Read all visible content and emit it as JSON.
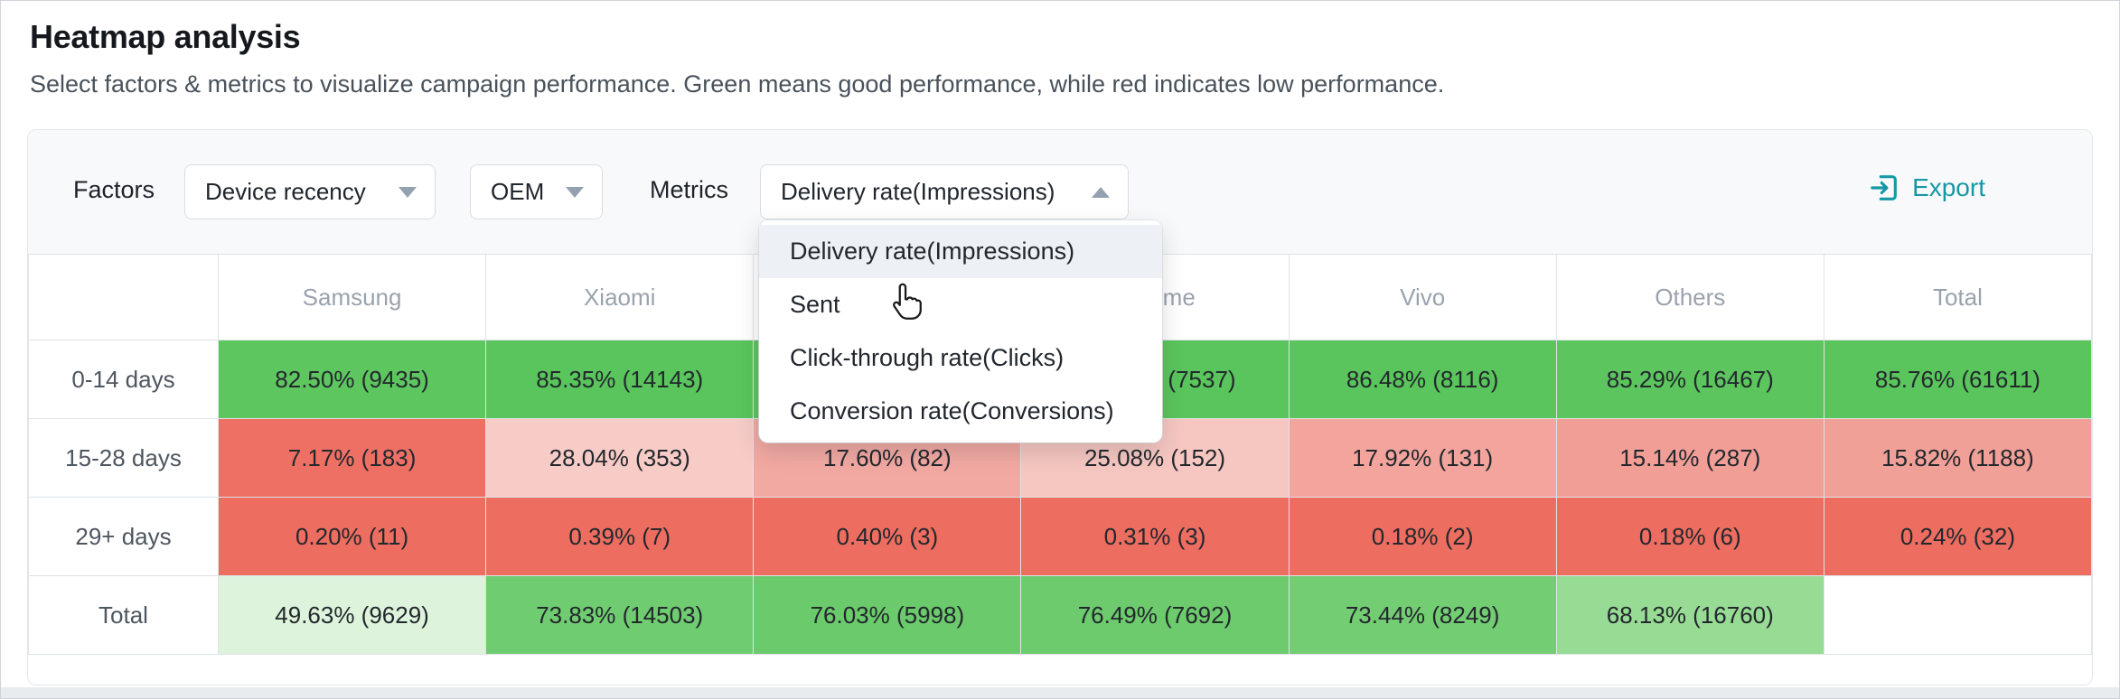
{
  "page": {
    "title": "Heatmap analysis",
    "subtitle": "Select factors & metrics to visualize campaign performance. Green means good performance, while red indicates low performance."
  },
  "toolbar": {
    "factors_label": "Factors",
    "factor_selects": [
      {
        "value": "Device recency",
        "state": "closed"
      },
      {
        "value": "OEM",
        "state": "closed"
      }
    ],
    "metrics_label": "Metrics",
    "metric_select": {
      "value": "Delivery rate(Impressions)",
      "state": "open"
    },
    "export_label": "Export",
    "accent_color": "#1598a6"
  },
  "metric_dropdown": {
    "options": [
      "Delivery rate(Impressions)",
      "Sent",
      "Click-through rate(Clicks)",
      "Conversion rate(Conversions)"
    ],
    "selected_index": 0,
    "cursor_over_index": 1
  },
  "icons": {
    "export": "box-with-right-arrow",
    "select_closed": "caret-down",
    "select_open": "caret-up",
    "pointer": "hand-cursor"
  },
  "heatmap": {
    "corner_label": "",
    "columns": [
      "Samsung",
      "Xiaomi",
      "",
      "Realme",
      "Vivo",
      "Others",
      "Total"
    ],
    "rows": [
      {
        "label": "0-14 days",
        "cells": [
          {
            "text": "82.50% (9435)",
            "bg": "#5ec65f"
          },
          {
            "text": "85.35% (14143)",
            "bg": "#5ac55c"
          },
          {
            "text": "",
            "bg": "#5ac55c"
          },
          {
            "text": "(7537)",
            "bg": "#5ac55c",
            "class": "shift-right"
          },
          {
            "text": "86.48% (8116)",
            "bg": "#5ac55c"
          },
          {
            "text": "85.29% (16467)",
            "bg": "#5cc55d"
          },
          {
            "text": "85.76% (61611)",
            "bg": "#5ac55c"
          }
        ]
      },
      {
        "label": "15-28 days",
        "cells": [
          {
            "text": "7.17% (183)",
            "bg": "#ee7065"
          },
          {
            "text": "28.04% (353)",
            "bg": "#f7ccc7"
          },
          {
            "text": "17.60% (82)",
            "bg": "#f2a9a2"
          },
          {
            "text": "25.08% (152)",
            "bg": "#f6c7c1"
          },
          {
            "text": "17.92% (131)",
            "bg": "#f2a49d"
          },
          {
            "text": "15.14% (287)",
            "bg": "#f19e97"
          },
          {
            "text": "15.82% (1188)",
            "bg": "#f1a098"
          }
        ]
      },
      {
        "label": "29+ days",
        "cells": [
          {
            "text": "0.20% (11)",
            "bg": "#ed6d61"
          },
          {
            "text": "0.39% (7)",
            "bg": "#ed6d61"
          },
          {
            "text": "0.40% (3)",
            "bg": "#ed6d61"
          },
          {
            "text": "0.31% (3)",
            "bg": "#ed6d61"
          },
          {
            "text": "0.18% (2)",
            "bg": "#ed6d61"
          },
          {
            "text": "0.18% (6)",
            "bg": "#ed6d61"
          },
          {
            "text": "0.24% (32)",
            "bg": "#ed6d61"
          }
        ]
      },
      {
        "label": "Total",
        "cells": [
          {
            "text": "49.63% (9629)",
            "bg": "#def3dc"
          },
          {
            "text": "73.83% (14503)",
            "bg": "#70cc70"
          },
          {
            "text": "76.03% (5998)",
            "bg": "#6bca6b"
          },
          {
            "text": "76.49% (7692)",
            "bg": "#6dcb6d"
          },
          {
            "text": "73.44% (8249)",
            "bg": "#73cd73"
          },
          {
            "text": "68.13% (16760)",
            "bg": "#98db95"
          },
          {
            "text": "",
            "bg": "#ffffff"
          }
        ]
      }
    ]
  }
}
